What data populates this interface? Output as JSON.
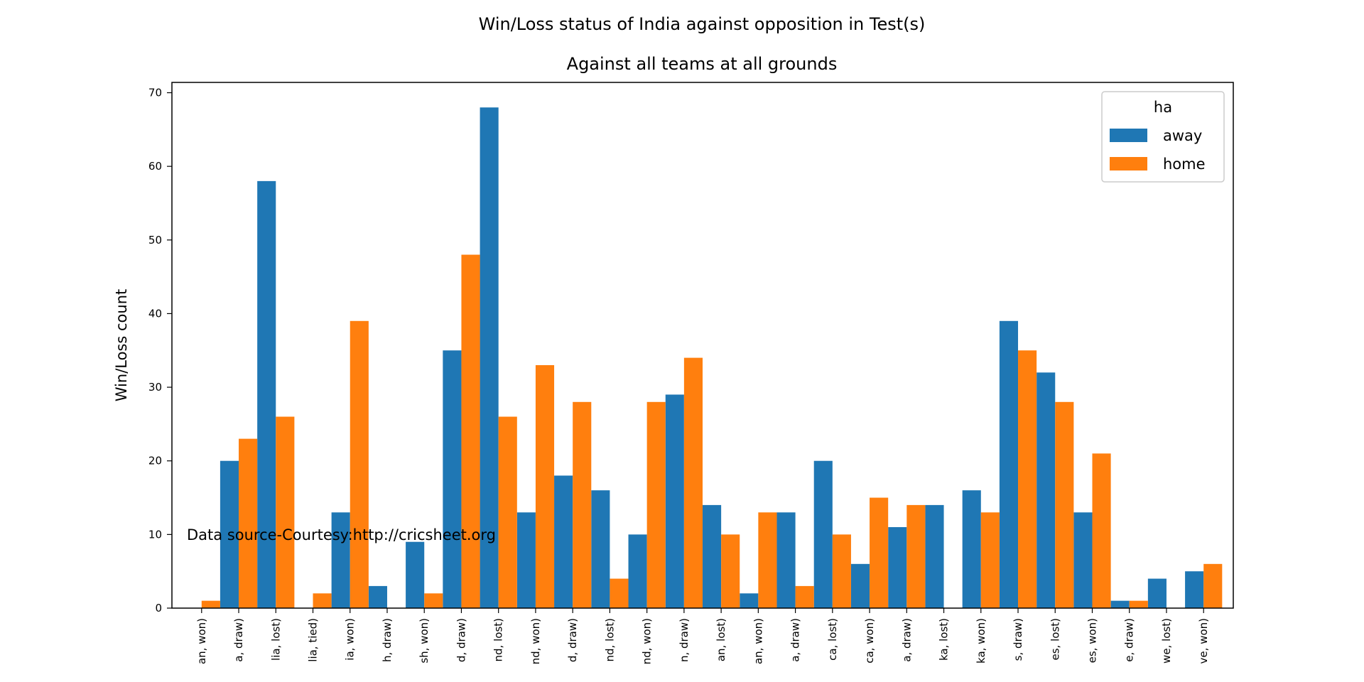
{
  "colors": {
    "away": "#1f77b4",
    "home": "#ff7f0e",
    "axis": "#000000",
    "background": "#ffffff"
  },
  "chart_data": {
    "type": "bar",
    "title": "Win/Loss status of India against opposition in Test(s)",
    "subtitle": "Against all teams at all grounds",
    "xlabel": "",
    "ylabel": "Win/Loss count",
    "ylim": [
      0,
      71.4
    ],
    "yticks": [
      0,
      10,
      20,
      30,
      40,
      50,
      60,
      70
    ],
    "categories": [
      "an, won)",
      "a, draw)",
      "lia, lost)",
      "lia, tied)",
      "ia, won)",
      "h, draw)",
      "sh, won)",
      "d, draw)",
      "nd, lost)",
      "nd, won)",
      "d, draw)",
      "nd, lost)",
      "nd, won)",
      "n, draw)",
      "an, lost)",
      "an, won)",
      "a, draw)",
      "ca, lost)",
      "ca, won)",
      "a, draw)",
      "ka, lost)",
      "ka, won)",
      "s, draw)",
      "es, lost)",
      "es, won)",
      "e, draw)",
      "we, lost)",
      "ve, won)"
    ],
    "series": [
      {
        "name": "away",
        "values": [
          0,
          20,
          58,
          0,
          13,
          3,
          9,
          35,
          68,
          13,
          18,
          16,
          10,
          29,
          14,
          2,
          13,
          20,
          6,
          11,
          14,
          16,
          39,
          32,
          13,
          1,
          4,
          5
        ]
      },
      {
        "name": "home",
        "values": [
          1,
          23,
          26,
          2,
          39,
          0,
          2,
          48,
          26,
          33,
          28,
          4,
          28,
          34,
          10,
          13,
          3,
          10,
          15,
          14,
          0,
          13,
          35,
          28,
          21,
          1,
          0,
          6
        ]
      }
    ],
    "legend": {
      "title": "ha",
      "position": "top-right"
    },
    "annotation": "Data source-Courtesy:http://cricsheet.org",
    "grid": false
  }
}
